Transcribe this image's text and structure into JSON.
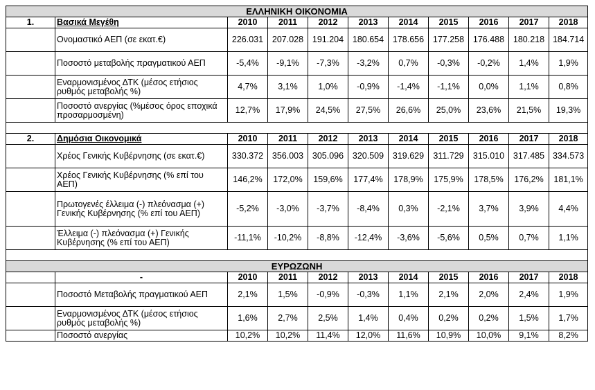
{
  "greek_title": "ΕΛΛΗΝΙΚΗ ΟΙΚΟΝΟΜΙΑ",
  "euro_title": "ΕΥΡΩΖΩΝΗ",
  "years": [
    "2010",
    "2011",
    "2012",
    "2013",
    "2014",
    "2015",
    "2016",
    "2017",
    "2018"
  ],
  "section1": {
    "number": "1.",
    "title": "Βασικά Μεγέθη",
    "rows": [
      {
        "label": "Ονομαστικό ΑΕΠ  (σε εκατ.€)",
        "values": [
          "226.031",
          "207.028",
          "191.204",
          "180.654",
          "178.656",
          "177.258",
          "176.488",
          "180.218",
          "184.714"
        ]
      },
      {
        "label": "Ποσοστό μεταβολής πραγματικού ΑΕΠ",
        "values": [
          "-5,4%",
          "-9,1%",
          "-7,3%",
          "-3,2%",
          "0,7%",
          "-0,3%",
          "-0,2%",
          "1,4%",
          "1,9%"
        ]
      },
      {
        "label": "Εναρμονισμένος ΔΤΚ (μέσος ετήσιος ρυθμός μεταβολής %)",
        "values": [
          "4,7%",
          "3,1%",
          "1,0%",
          "-0,9%",
          "-1,4%",
          "-1,1%",
          "0,0%",
          "1,1%",
          "0,8%"
        ]
      },
      {
        "label": "Ποσοστό ανεργίας (%μέσος όρος εποχικά προσαρμοσμένη)",
        "values": [
          "12,7%",
          "17,9%",
          "24,5%",
          "27,5%",
          "26,6%",
          "25,0%",
          "23,6%",
          "21,5%",
          "19,3%"
        ]
      }
    ]
  },
  "section2": {
    "number": "2.",
    "title": "Δημόσια Οικονομικά",
    "rows": [
      {
        "label": "Χρέος Γενικής Κυβέρνησης (σε εκατ.€)",
        "values": [
          "330.372",
          "356.003",
          "305.096",
          "320.509",
          "319.629",
          "311.729",
          "315.010",
          "317.485",
          "334.573"
        ]
      },
      {
        "label": "Χρέος Γενικής Κυβέρνησης (% επί του ΑΕΠ)",
        "values": [
          "146,2%",
          "172,0%",
          "159,6%",
          "177,4%",
          "178,9%",
          "175,9%",
          "178,5%",
          "176,2%",
          "181,1%"
        ]
      },
      {
        "label": "Πρωτογενές έλλειμα (-) πλεόνασμα (+) Γενικής Κυβέρνησης (% επί του ΑΕΠ)",
        "values": [
          "-5,2%",
          "-3,0%",
          "-3,7%",
          "-8,4%",
          "0,3%",
          "-2,1%",
          "3,7%",
          "3,9%",
          "4,4%"
        ]
      },
      {
        "label": "Έλλειμα (-) πλεόνασμα (+) Γενικής Κυβέρνησης (% επί του  ΑΕΠ)",
        "values": [
          "-11,1%",
          "-10,2%",
          "-8,8%",
          "-12,4%",
          "-3,6%",
          "-5,6%",
          "0,5%",
          "0,7%",
          "1,1%"
        ]
      }
    ]
  },
  "section3": {
    "marker": "-",
    "rows": [
      {
        "label": "Ποσοστό Μεταβολής πραγματικού ΑΕΠ",
        "values": [
          "2,1%",
          "1,5%",
          "-0,9%",
          "-0,3%",
          "1,1%",
          "2,1%",
          "2,0%",
          "2,4%",
          "1,9%"
        ]
      },
      {
        "label": "Εναρμονισμένος ΔΤΚ (μέσος ετήσιος ρυθμός μεταβολής %)",
        "values": [
          "1,6%",
          "2,7%",
          "2,5%",
          "1,4%",
          "0,4%",
          "0,2%",
          "0,2%",
          "1,5%",
          "1,7%"
        ]
      },
      {
        "label": "Ποσοστό ανεργίας",
        "values": [
          "10,2%",
          "10,2%",
          "11,4%",
          "12,0%",
          "11,6%",
          "10,9%",
          "10,0%",
          "9,1%",
          "8,2%"
        ]
      }
    ]
  }
}
